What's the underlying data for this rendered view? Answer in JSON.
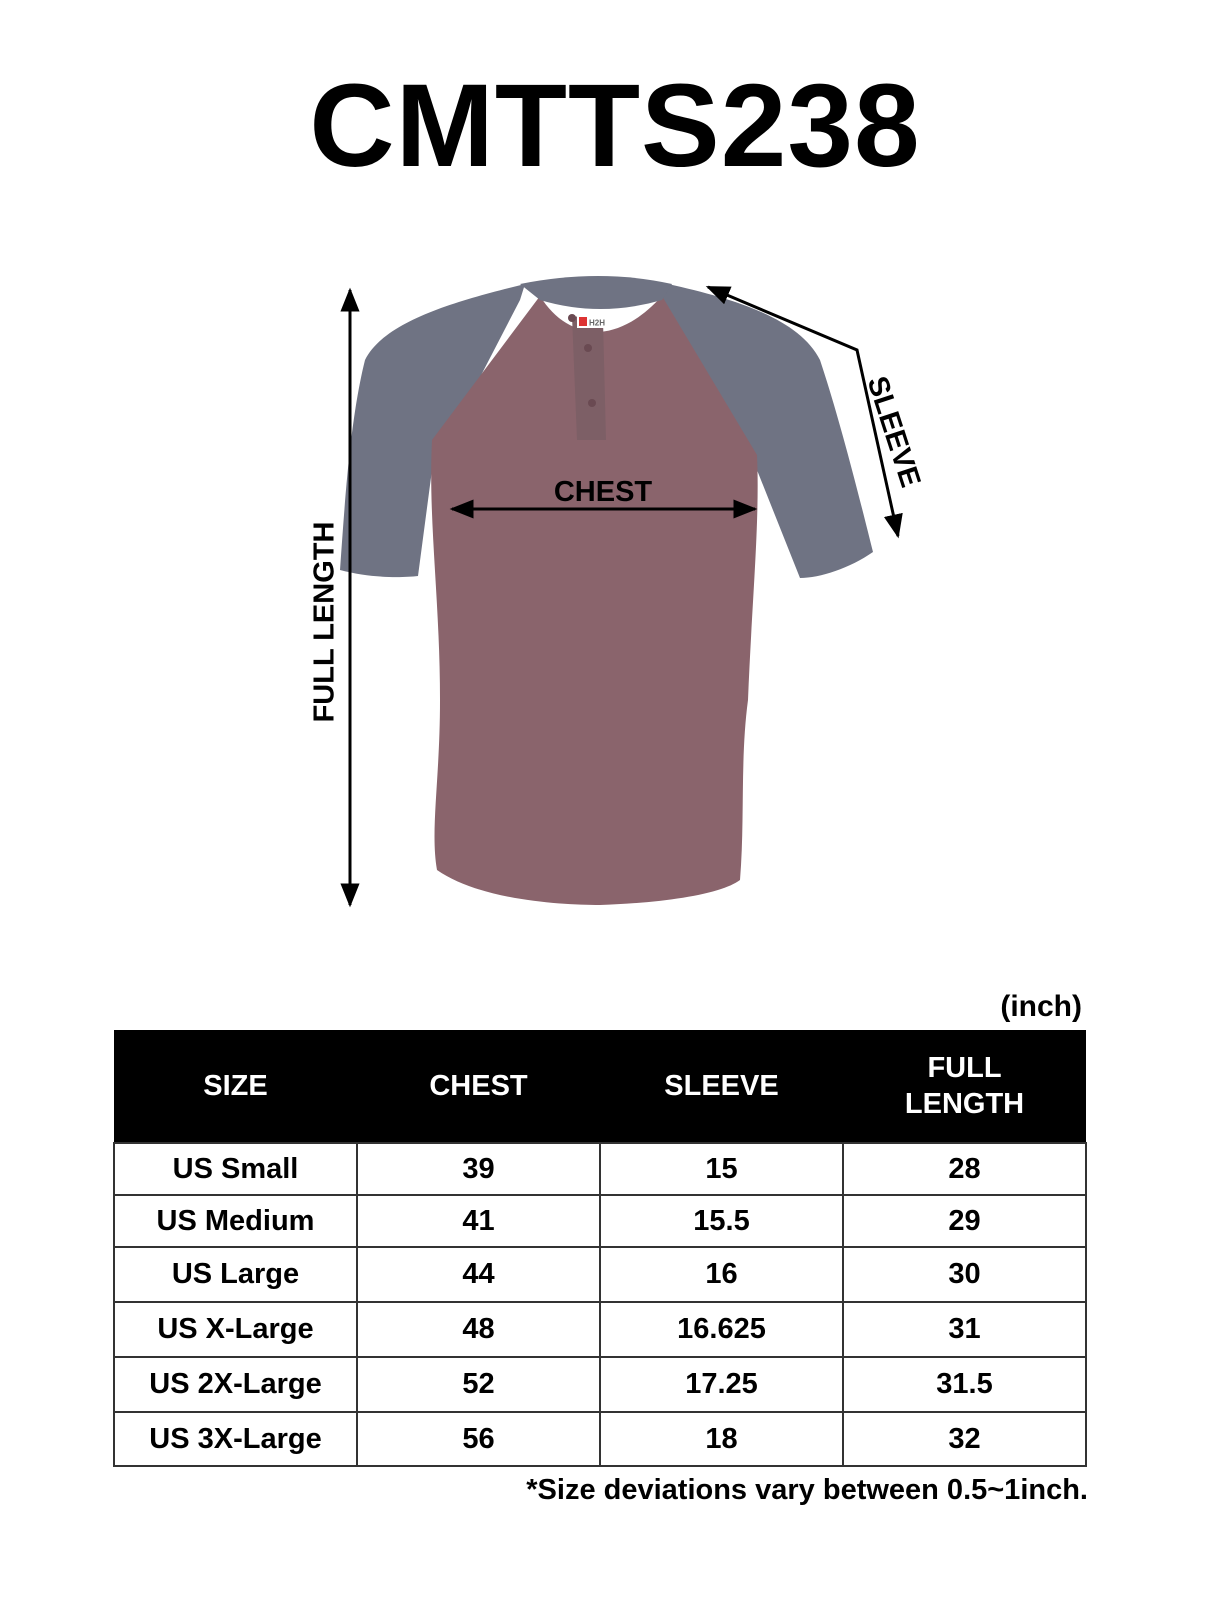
{
  "title": "CMTTS238",
  "diagram": {
    "labels": {
      "chest": "CHEST",
      "sleeve": "SLEEVE",
      "full_length": "FULL LENGTH"
    },
    "brand_tag": "H2H",
    "colors": {
      "body": "#8a646c",
      "sleeves": "#6f7383"
    }
  },
  "unit": "(inch)",
  "table": {
    "headers": [
      "SIZE",
      "CHEST",
      "SLEEVE",
      "FULL LENGTH"
    ],
    "rows": [
      [
        "US Small",
        "39",
        "15",
        "28"
      ],
      [
        "US Medium",
        "41",
        "15.5",
        "29"
      ],
      [
        "US Large",
        "44",
        "16",
        "30"
      ],
      [
        "US X-Large",
        "48",
        "16.625",
        "31"
      ],
      [
        "US 2X-Large",
        "52",
        "17.25",
        "31.5"
      ],
      [
        "US 3X-Large",
        "56",
        "18",
        "32"
      ]
    ]
  },
  "note": "*Size deviations vary between 0.5~1inch."
}
